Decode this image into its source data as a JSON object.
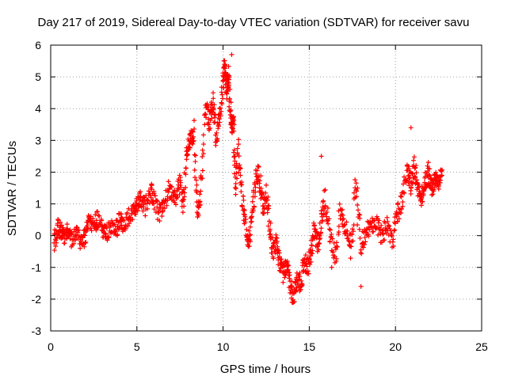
{
  "chart_data": {
    "type": "scatter",
    "title": "Day 217 of 2019, Sidereal Day-to-day VTEC variation (SDTVAR) for receiver savu",
    "xlabel": "GPS time / hours",
    "ylabel": "SDTVAR / TECUs",
    "xlim": [
      0,
      25
    ],
    "ylim": [
      -3,
      6
    ],
    "xticks": [
      0,
      5,
      10,
      15,
      20,
      25
    ],
    "yticks": [
      -3,
      -2,
      -1,
      0,
      1,
      2,
      3,
      4,
      5,
      6
    ],
    "grid": true,
    "marker": "+",
    "color": "#ff0000",
    "series": [
      {
        "name": "SDTVAR",
        "x": [
          0.2,
          0.4,
          0.6,
          0.8,
          1.0,
          1.2,
          1.5,
          1.8,
          2.0,
          2.2,
          2.5,
          2.7,
          3.0,
          3.2,
          3.5,
          3.8,
          4.0,
          4.2,
          4.5,
          4.8,
          5.0,
          5.2,
          5.5,
          5.8,
          6.0,
          6.3,
          6.6,
          6.9,
          7.2,
          7.5,
          7.7,
          7.9,
          8.1,
          8.3,
          8.5,
          8.7,
          9.0,
          9.2,
          9.4,
          9.6,
          9.8,
          10.0,
          10.1,
          10.2,
          10.3,
          10.4,
          10.5,
          10.6,
          10.7,
          10.9,
          11.1,
          11.3,
          11.5,
          11.7,
          11.9,
          12.1,
          12.3,
          12.5,
          12.7,
          12.9,
          13.1,
          13.3,
          13.5,
          13.7,
          13.9,
          14.1,
          14.3,
          14.5,
          14.7,
          14.9,
          15.1,
          15.3,
          15.5,
          15.7,
          15.9,
          16.2,
          16.5,
          16.8,
          17.1,
          17.4,
          17.7,
          18.0,
          18.3,
          18.6,
          18.9,
          19.2,
          19.5,
          19.8,
          20.1,
          20.4,
          20.7,
          20.9,
          21.1,
          21.3,
          21.5,
          21.7,
          21.9,
          22.1,
          22.3,
          22.5,
          22.7
        ],
        "y": [
          -0.2,
          0.3,
          0.1,
          0.0,
          0.2,
          -0.1,
          0.1,
          -0.3,
          0.0,
          0.4,
          0.3,
          0.5,
          0.2,
          0.0,
          0.3,
          0.2,
          0.5,
          0.3,
          0.6,
          0.8,
          1.0,
          1.2,
          0.9,
          1.4,
          1.1,
          0.7,
          1.0,
          1.5,
          1.2,
          1.6,
          0.9,
          2.6,
          3.0,
          3.2,
          0.8,
          1.3,
          4.0,
          3.6,
          4.2,
          3.0,
          3.8,
          4.8,
          5.4,
          4.6,
          5.0,
          4.2,
          3.4,
          3.8,
          1.6,
          2.6,
          1.2,
          0.4,
          -0.2,
          0.6,
          1.8,
          2.0,
          0.8,
          1.4,
          0.2,
          -0.5,
          -0.2,
          -0.9,
          -1.2,
          -1.0,
          -1.6,
          -1.9,
          -1.3,
          -1.5,
          -0.8,
          -1.0,
          -0.6,
          0.2,
          -0.3,
          0.5,
          1.2,
          -0.1,
          -0.7,
          0.8,
          0.3,
          -0.3,
          1.4,
          -0.3,
          0.2,
          0.3,
          0.4,
          0.0,
          0.3,
          -0.2,
          0.6,
          1.2,
          2.0,
          1.6,
          2.2,
          1.4,
          1.2,
          1.6,
          2.0,
          1.5,
          1.8,
          1.7,
          1.9
        ],
        "outliers": [
          [
            20.9,
            3.4
          ],
          [
            15.7,
            2.5
          ],
          [
            18.0,
            -1.6
          ],
          [
            16.3,
            -1.0
          ],
          [
            17.8,
            1.5
          ],
          [
            22.4,
            1.9
          ],
          [
            10.5,
            5.7
          ],
          [
            14.0,
            -2.1
          ]
        ]
      }
    ]
  }
}
